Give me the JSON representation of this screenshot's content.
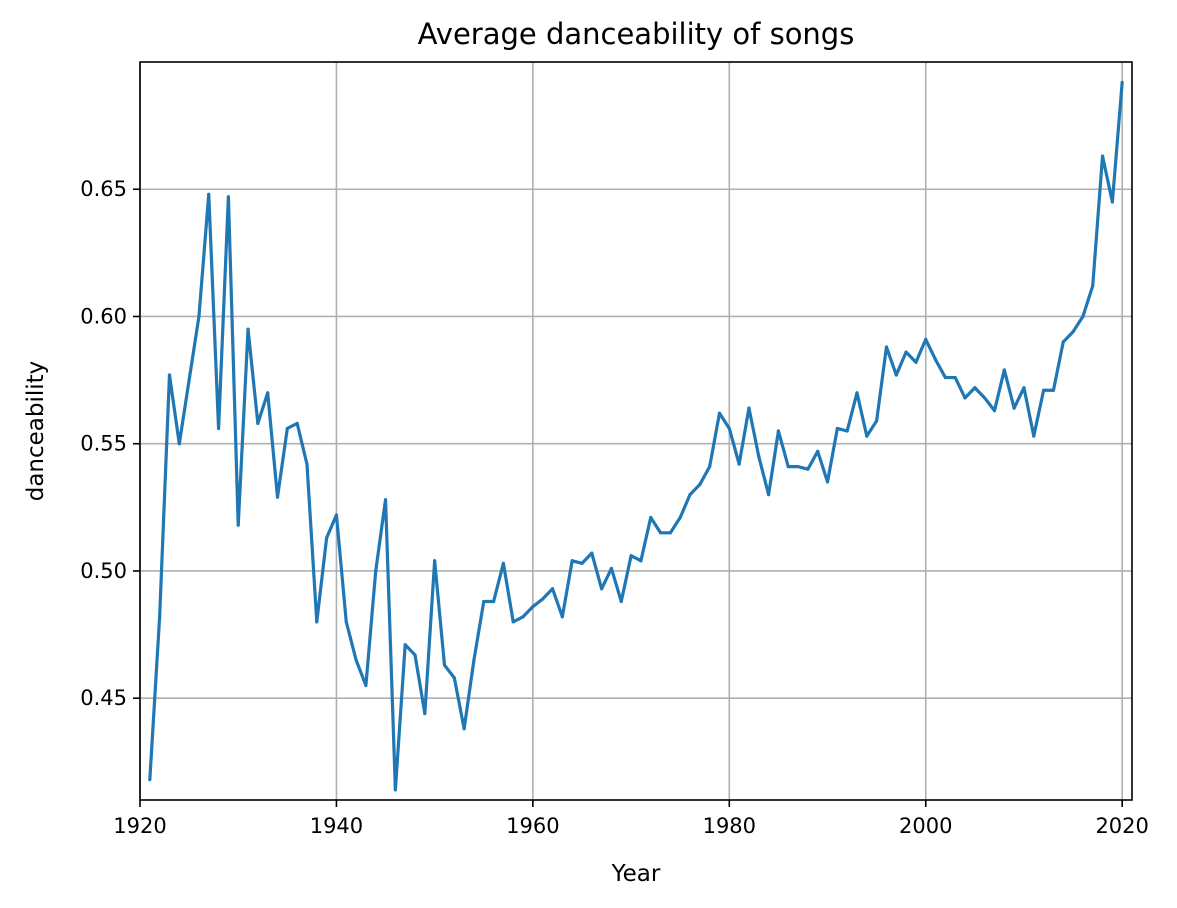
{
  "chart_data": {
    "type": "line",
    "title": "Average danceability of songs",
    "xlabel": "Year",
    "ylabel": "danceability",
    "xlim": [
      1920,
      2021
    ],
    "ylim": [
      0.41,
      0.7
    ],
    "xticks": [
      1920,
      1940,
      1960,
      1980,
      2000,
      2020
    ],
    "yticks": [
      0.45,
      0.5,
      0.55,
      0.6,
      0.65
    ],
    "ytick_labels": [
      "0.45",
      "0.50",
      "0.55",
      "0.60",
      "0.65"
    ],
    "grid": true,
    "colors": {
      "series": "#1f77b4",
      "grid": "#b0b0b0",
      "frame": "#000000"
    },
    "series": [
      {
        "x": [
          1921,
          1922,
          1923,
          1924,
          1925,
          1926,
          1927,
          1928,
          1929,
          1930,
          1931,
          1932,
          1933,
          1934,
          1935,
          1936,
          1937,
          1938,
          1939,
          1940,
          1941,
          1942,
          1943,
          1944,
          1945,
          1946,
          1947,
          1948,
          1949,
          1950,
          1951,
          1952,
          1953,
          1954,
          1955,
          1956,
          1957,
          1958,
          1959,
          1960,
          1961,
          1962,
          1963,
          1964,
          1965,
          1966,
          1967,
          1968,
          1969,
          1970,
          1971,
          1972,
          1973,
          1974,
          1975,
          1976,
          1977,
          1978,
          1979,
          1980,
          1981,
          1982,
          1983,
          1984,
          1985,
          1986,
          1987,
          1988,
          1989,
          1990,
          1991,
          1992,
          1993,
          1994,
          1995,
          1996,
          1997,
          1998,
          1999,
          2000,
          2001,
          2002,
          2003,
          2004,
          2005,
          2006,
          2007,
          2008,
          2009,
          2010,
          2011,
          2012,
          2013,
          2014,
          2015,
          2016,
          2017,
          2018,
          2019,
          2020
        ],
        "values": [
          0.418,
          0.482,
          0.577,
          0.55,
          0.575,
          0.6,
          0.648,
          0.556,
          0.647,
          0.518,
          0.595,
          0.558,
          0.57,
          0.529,
          0.556,
          0.558,
          0.542,
          0.48,
          0.513,
          0.522,
          0.48,
          0.465,
          0.455,
          0.5,
          0.528,
          0.414,
          0.471,
          0.467,
          0.444,
          0.504,
          0.463,
          0.458,
          0.438,
          0.465,
          0.488,
          0.488,
          0.503,
          0.48,
          0.482,
          0.486,
          0.489,
          0.493,
          0.482,
          0.504,
          0.503,
          0.507,
          0.493,
          0.501,
          0.488,
          0.506,
          0.504,
          0.521,
          0.515,
          0.515,
          0.521,
          0.53,
          0.534,
          0.541,
          0.562,
          0.556,
          0.542,
          0.564,
          0.545,
          0.53,
          0.555,
          0.541,
          0.541,
          0.54,
          0.547,
          0.535,
          0.556,
          0.555,
          0.57,
          0.553,
          0.559,
          0.588,
          0.577,
          0.586,
          0.582,
          0.591,
          0.583,
          0.576,
          0.576,
          0.568,
          0.572,
          0.568,
          0.563,
          0.579,
          0.564,
          0.572,
          0.553,
          0.571,
          0.571,
          0.59,
          0.594,
          0.6,
          0.612,
          0.663,
          0.645,
          0.692
        ]
      }
    ]
  }
}
